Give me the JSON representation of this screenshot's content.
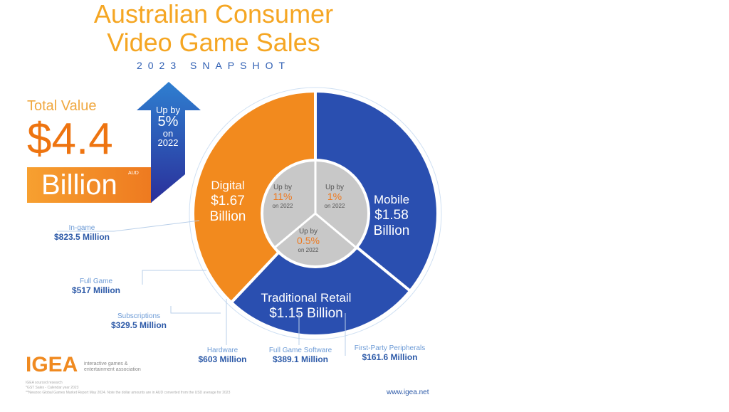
{
  "header": {
    "title_line1": "Australian Consumer",
    "title_line2": "Video Game Sales",
    "subtitle": "2023 SNAPSHOT"
  },
  "total": {
    "label": "Total Value",
    "value": "$4.4",
    "unit": "Billion",
    "currency": "AUD",
    "growth": {
      "prefix": "Up by",
      "value": "5%",
      "suffix": "on",
      "year": "2022"
    }
  },
  "chart_data": {
    "type": "pie",
    "title": "Australian Consumer Video Game Sales 2023",
    "categories": [
      "Digital",
      "Mobile",
      "Traditional Retail"
    ],
    "values": [
      1.67,
      1.58,
      1.15
    ],
    "unit": "AUD Billion",
    "growth_on_2022": [
      "11%",
      "1%",
      "0.5%"
    ],
    "breakdown": {
      "Digital": [
        {
          "label": "In-game",
          "value": "$823.5 Million"
        },
        {
          "label": "Full Game",
          "value": "$517 Million"
        },
        {
          "label": "Subscriptions",
          "value": "$329.5 Million"
        }
      ],
      "Traditional Retail": [
        {
          "label": "Hardware",
          "value": "$603 Million"
        },
        {
          "label": "Full Game Software",
          "value": "$389.1 Million"
        },
        {
          "label": "First-Party Peripherals",
          "value": "$161.6 Million"
        }
      ]
    }
  },
  "segments": [
    {
      "name": "Digital",
      "mark": "*",
      "amount": "$1.67",
      "unit": "Billion",
      "up": "Up by",
      "growth": "11%",
      "on": "on 2022"
    },
    {
      "name": "Mobile",
      "mark": "**",
      "amount": "$1.58",
      "unit": "Billion",
      "up": "Up by",
      "growth": "1%",
      "on": "on 2022"
    },
    {
      "name": "Traditional Retail",
      "mark": "*",
      "amount": "$1.15",
      "unit": "Billion",
      "up": "Up by",
      "growth": "0.5%",
      "on": "on 2022"
    }
  ],
  "colors": {
    "digital": "#f28a1e",
    "mobile": "#2a4fb0",
    "retail": "#2a4fb0",
    "center": "#c8c8c8"
  },
  "footer": {
    "logo": "IGEA",
    "org_line1": "interactive games &",
    "org_line2": "entertainment association",
    "notes": [
      "IGEA sourced research",
      "*GST Sales - Calendar year 2023",
      "**Newzoo Global Games Market Report May 2024. Note the dollar amounts are in AUD converted from the USD average for 2023"
    ],
    "url": "www.igea.net"
  }
}
